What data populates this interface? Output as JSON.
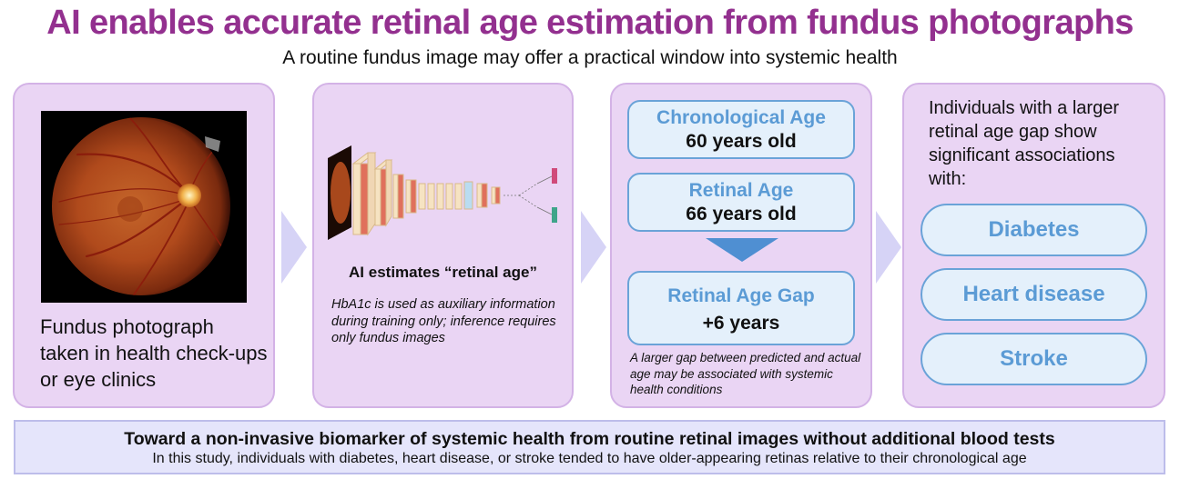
{
  "header": {
    "title": "AI enables accurate retinal age estimation from fundus photographs",
    "subtitle": "A routine fundus image may offer a practical window into systemic health"
  },
  "panel1": {
    "label": "Fundus photograph taken in health check-ups or eye clinics"
  },
  "panel2": {
    "heading": "AI estimates “retinal age”",
    "note": "HbA1c is used as auxiliary information during training only; inference requires only fundus images"
  },
  "panel3": {
    "chronological_label": "Chronological Age",
    "chronological_value": "60 years old",
    "retinal_label": "Retinal Age",
    "retinal_value": "66 years old",
    "gap_label": "Retinal Age Gap",
    "gap_value": "+6 years",
    "note": "A larger gap between predicted and actual age may be associated with systemic health conditions"
  },
  "panel4": {
    "intro": "Individuals with a larger retinal age gap show significant associations with:",
    "conditions": [
      "Diabetes",
      "Heart disease",
      "Stroke"
    ]
  },
  "banner": {
    "title": "Toward a non-invasive biomarker of systemic health from routine retinal images without additional blood tests",
    "text": "In this study, individuals with diabetes, heart disease, or stroke tended to have older-appearing retinas relative to their chronological age"
  },
  "colors": {
    "title": "#93308f",
    "panel_fill": "#ead5f4",
    "panel_border": "#d3b2e6",
    "accent_blue": "#5b9bd5",
    "box_fill": "#e4f0fb",
    "banner_fill": "#e5e5fb"
  }
}
